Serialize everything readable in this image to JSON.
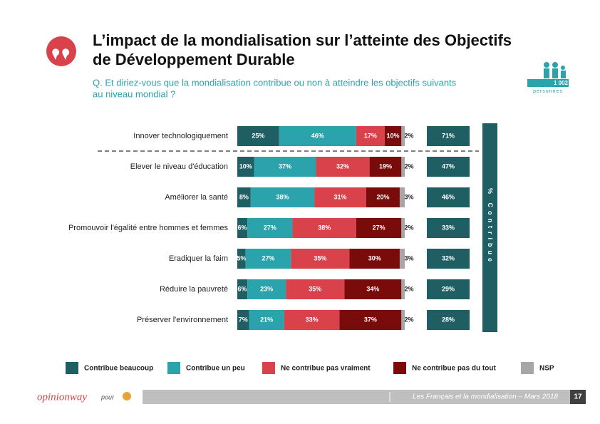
{
  "chart_data": {
    "type": "stacked-bar-horizontal",
    "title": [
      "L’impact de la mondialisation sur l’atteinte des Objectifs",
      "de Développement Durable"
    ],
    "subtitle": [
      "Q. Et diriez-vous que la mondialisation contribue ou non à atteindre les objectifs suivants",
      "au niveau mondial ?"
    ],
    "sample": {
      "count": "1 002",
      "unit": "personnes"
    },
    "categories": [
      "Innover technologiquement",
      "Elever le niveau d'éducation",
      "Améliorer la santé",
      "Promouvoir l'égalité entre hommes et femmes",
      "Eradiquer la faim",
      "Réduire la pauvreté",
      "Préserver l'environnement"
    ],
    "series": [
      {
        "name": "Contribue beaucoup",
        "color": "#1f5f63",
        "values": [
          25,
          10,
          8,
          6,
          5,
          6,
          7
        ],
        "value_labels": [
          "25%",
          "10%",
          "8%",
          "6%",
          "5%",
          "6%",
          "7%"
        ]
      },
      {
        "name": "Contribue un peu",
        "color": "#2aa3ad",
        "values": [
          46,
          37,
          38,
          27,
          27,
          23,
          21
        ],
        "value_labels": [
          "46%",
          "37%",
          "38%",
          "27%",
          "27%",
          "23%",
          "21%"
        ]
      },
      {
        "name": "Ne contribue pas vraiment",
        "color": "#d9414b",
        "values": [
          17,
          32,
          31,
          38,
          35,
          35,
          33
        ],
        "value_labels": [
          "17%",
          "32%",
          "31%",
          "38%",
          "35%",
          "35%",
          "33%"
        ]
      },
      {
        "name": "Ne contribue pas du tout",
        "color": "#7a0b0b",
        "values": [
          10,
          19,
          20,
          27,
          30,
          34,
          37
        ],
        "value_labels": [
          "10%",
          "19%",
          "20%",
          "27%",
          "30%",
          "34%",
          "37%"
        ]
      },
      {
        "name": "NSP",
        "color": "#a6a6a6",
        "values": [
          2,
          2,
          3,
          2,
          3,
          2,
          2
        ],
        "value_labels": [
          "2%",
          "2%",
          "3%",
          "2%",
          "3%",
          "2%",
          "2%"
        ]
      }
    ],
    "totals": {
      "name": "% Contribue",
      "color": "#1f5f63",
      "values": [
        71,
        47,
        46,
        33,
        32,
        29,
        28
      ],
      "value_labels": [
        "71%",
        "47%",
        "46%",
        "33%",
        "32%",
        "29%",
        "28%"
      ]
    },
    "xlim": [
      0,
      100
    ],
    "footer": {
      "brand": "opinionway",
      "for": "pour",
      "source": "Les Français et la mondialisation – Mars 2018",
      "page": "17"
    }
  }
}
